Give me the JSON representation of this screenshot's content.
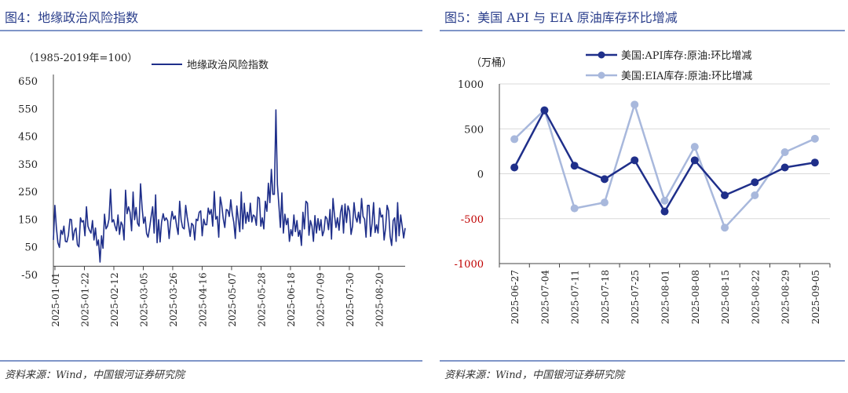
{
  "left": {
    "title": "图4：地缘政治风险指数",
    "source": "资料来源：Wind，中国银河证券研究院",
    "chart_data": {
      "type": "line",
      "unit_note": "（1985-2019年=100）",
      "series": [
        {
          "name": "地缘政治风险指数",
          "color": "#1f2f8a"
        }
      ],
      "x_tick_labels": [
        "2025-01-01",
        "2025-01-22",
        "2025-02-12",
        "2025-03-05",
        "2025-03-26",
        "2025-04-16",
        "2025-05-07",
        "2025-05-28",
        "2025-06-18",
        "2025-07-09",
        "2025-07-30",
        "2025-08-20"
      ],
      "ylim": [
        -50,
        650
      ],
      "y_ticks": [
        -50,
        50,
        150,
        250,
        350,
        450,
        550,
        650
      ],
      "values": [
        75,
        200,
        120,
        65,
        48,
        110,
        95,
        125,
        70,
        68,
        92,
        150,
        148,
        75,
        108,
        118,
        58,
        50,
        155,
        140,
        145,
        90,
        195,
        125,
        110,
        100,
        145,
        75,
        118,
        55,
        75,
        -5,
        90,
        45,
        168,
        115,
        125,
        150,
        258,
        140,
        148,
        125,
        108,
        165,
        95,
        140,
        128,
        75,
        255,
        170,
        195,
        175,
        108,
        248,
        148,
        192,
        135,
        125,
        278,
        190,
        135,
        158,
        98,
        85,
        118,
        158,
        195,
        100,
        238,
        65,
        148,
        68,
        140,
        170,
        145,
        155,
        145,
        80,
        140,
        178,
        150,
        162,
        125,
        95,
        215,
        148,
        120,
        115,
        200,
        158,
        125,
        88,
        135,
        128,
        75,
        150,
        145,
        175,
        180,
        90,
        150,
        130,
        130,
        190,
        168,
        185,
        125,
        250,
        150,
        160,
        85,
        230,
        200,
        152,
        120,
        185,
        182,
        160,
        220,
        170,
        140,
        80,
        198,
        150,
        105,
        248,
        115,
        208,
        135,
        175,
        142,
        208,
        140,
        165,
        160,
        128,
        230,
        225,
        125,
        155,
        115,
        215,
        178,
        280,
        210,
        330,
        240,
        240,
        545,
        275,
        200,
        120,
        245,
        100,
        168,
        130,
        153,
        70,
        112,
        90,
        165,
        105,
        145,
        88,
        110,
        55,
        175,
        115,
        215,
        208,
        92,
        145,
        125,
        70,
        163,
        100,
        152,
        110,
        148,
        90,
        108,
        160,
        152,
        112,
        185,
        78,
        225,
        165,
        120,
        155,
        110,
        175,
        200,
        100,
        205,
        138,
        198,
        178,
        95,
        125,
        210,
        158,
        140,
        175,
        135,
        225,
        160,
        150,
        85,
        200,
        200,
        88,
        135,
        210,
        102,
        130,
        100,
        190,
        158,
        165,
        75,
        118,
        200,
        180,
        88,
        55,
        145,
        155,
        70,
        210,
        90,
        165,
        125,
        82,
        118
      ]
    }
  },
  "right": {
    "title": "图5：美国 API 与 EIA 原油库存环比增减",
    "source": "资料来源：Wind，中国银河证券研究院",
    "chart_data": {
      "type": "line",
      "ylabel": "（万桶）",
      "categories": [
        "2025-06-27",
        "2025-07-04",
        "2025-07-11",
        "2025-07-18",
        "2025-07-25",
        "2025-08-01",
        "2025-08-08",
        "2025-08-15",
        "2025-08-22",
        "2025-08-29",
        "2025-09-05"
      ],
      "ylim": [
        -1000,
        1000
      ],
      "y_ticks": [
        -1000,
        -500,
        0,
        500,
        1000
      ],
      "series": [
        {
          "name": "美国:API库存:原油:环比增减",
          "color": "#1f2f8a",
          "values": [
            70,
            705,
            90,
            -60,
            150,
            -420,
            150,
            -240,
            -95,
            70,
            125
          ]
        },
        {
          "name": "美国:EIA库存:原油:环比增减",
          "color": "#a8b8dc",
          "values": [
            385,
            710,
            -385,
            -320,
            770,
            -300,
            300,
            -600,
            -240,
            240,
            390
          ]
        }
      ]
    }
  }
}
